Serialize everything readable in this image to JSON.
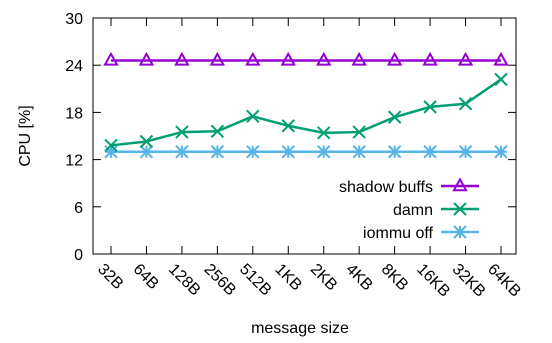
{
  "chart_data": {
    "type": "line",
    "title": "",
    "xlabel": "message size",
    "ylabel": "CPU [%]",
    "categories": [
      "32B",
      "64B",
      "128B",
      "256B",
      "512B",
      "1KB",
      "2KB",
      "4KB",
      "8KB",
      "16KB",
      "32KB",
      "64KB"
    ],
    "ylim": [
      0,
      30
    ],
    "yticks": [
      0,
      6,
      12,
      18,
      24,
      30
    ],
    "grid": false,
    "legend_position": "bottom-right",
    "series": [
      {
        "name": "shadow buffs",
        "color": "#9400d3",
        "marker": "triangle",
        "values": [
          24.6,
          24.6,
          24.6,
          24.6,
          24.6,
          24.6,
          24.6,
          24.6,
          24.6,
          24.6,
          24.6,
          24.6
        ]
      },
      {
        "name": "damn",
        "color": "#009e73",
        "marker": "x",
        "values": [
          13.8,
          14.3,
          15.5,
          15.6,
          17.5,
          16.3,
          15.4,
          15.5,
          17.4,
          18.7,
          19.1,
          22.2
        ]
      },
      {
        "name": "iommu off",
        "color": "#56b4e9",
        "marker": "asterisk",
        "values": [
          13.0,
          13.0,
          13.0,
          13.0,
          13.0,
          13.0,
          13.0,
          13.0,
          13.0,
          13.0,
          13.0,
          13.0
        ]
      }
    ]
  }
}
